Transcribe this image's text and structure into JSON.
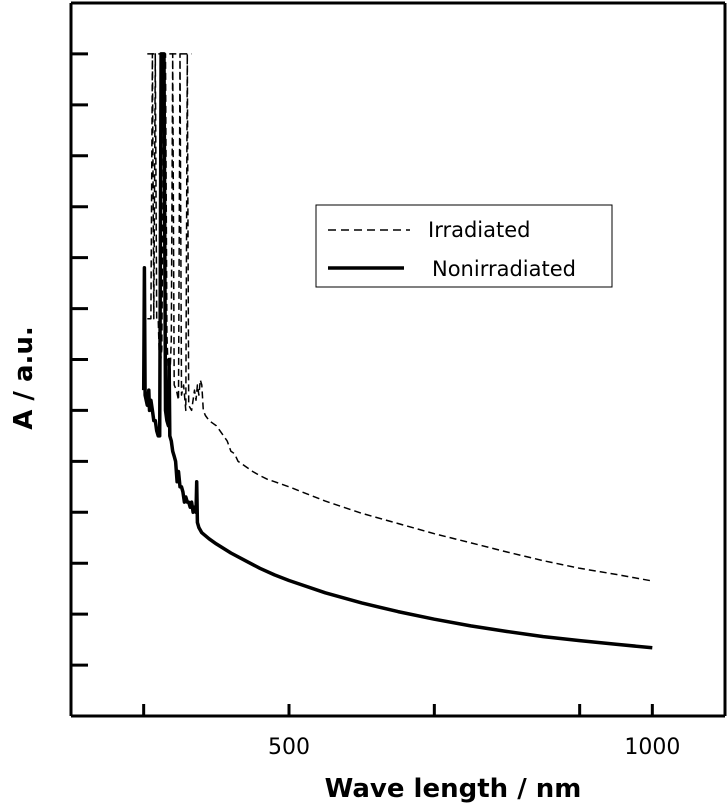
{
  "chart_data": {
    "type": "line",
    "title": "",
    "xlabel": "Wave length / nm",
    "ylabel": "A / a.u.",
    "xlim": [
      200,
      1100
    ],
    "ylim": [
      0,
      14
    ],
    "x_major_ticks": [
      300,
      500,
      700,
      900,
      1000
    ],
    "x_tick_labels": [
      {
        "value": 500,
        "label": "500"
      },
      {
        "value": 1000,
        "label": "1000"
      }
    ],
    "y_ticks": [
      1,
      2,
      3,
      4,
      5,
      6,
      7,
      8,
      9,
      10,
      11,
      12,
      13
    ],
    "y_tick_labels_shown": false,
    "grid": false,
    "legend": {
      "position": "top-right"
    },
    "series": [
      {
        "name": "Irradiated",
        "style": "dashed",
        "color": "#000000",
        "points": [
          [
            305,
            7.8
          ],
          [
            310,
            7.8
          ],
          [
            312,
            13
          ],
          [
            314,
            7.8
          ],
          [
            316,
            13
          ],
          [
            318,
            7.8
          ],
          [
            320,
            7.8
          ],
          [
            322,
            6.8
          ],
          [
            325,
            7.2
          ],
          [
            328,
            13
          ],
          [
            330,
            13
          ],
          [
            332,
            7.5
          ],
          [
            335,
            6.2
          ],
          [
            338,
            7.4
          ],
          [
            340,
            13
          ],
          [
            342,
            6.5
          ],
          [
            345,
            6.4
          ],
          [
            348,
            6.2
          ],
          [
            350,
            13
          ],
          [
            352,
            6.3
          ],
          [
            355,
            6.5
          ],
          [
            358,
            6.0
          ],
          [
            360,
            13
          ],
          [
            362,
            6.1
          ],
          [
            366,
            6.0
          ],
          [
            370,
            6.4
          ],
          [
            372,
            6.2
          ],
          [
            374,
            6.5
          ],
          [
            376,
            6.3
          ],
          [
            378,
            6.6
          ],
          [
            380,
            6.5
          ],
          [
            382,
            6.0
          ],
          [
            385,
            5.9
          ],
          [
            390,
            5.8
          ],
          [
            395,
            5.75
          ],
          [
            400,
            5.7
          ],
          [
            405,
            5.6
          ],
          [
            410,
            5.5
          ],
          [
            415,
            5.4
          ],
          [
            420,
            5.2
          ],
          [
            425,
            5.15
          ],
          [
            430,
            5.0
          ],
          [
            435,
            4.95
          ],
          [
            440,
            4.9
          ],
          [
            450,
            4.8
          ],
          [
            460,
            4.72
          ],
          [
            470,
            4.65
          ],
          [
            480,
            4.6
          ],
          [
            500,
            4.5
          ],
          [
            550,
            4.22
          ],
          [
            600,
            3.98
          ],
          [
            650,
            3.78
          ],
          [
            700,
            3.58
          ],
          [
            750,
            3.4
          ],
          [
            800,
            3.22
          ],
          [
            850,
            3.05
          ],
          [
            900,
            2.9
          ],
          [
            950,
            2.78
          ],
          [
            1000,
            2.65
          ]
        ]
      },
      {
        "name": "Nonirradiated",
        "style": "solid",
        "color": "#000000",
        "points": [
          [
            300,
            6.4
          ],
          [
            301,
            8.8
          ],
          [
            302,
            6.3
          ],
          [
            305,
            6.1
          ],
          [
            307,
            6.4
          ],
          [
            308,
            6.0
          ],
          [
            310,
            6.2
          ],
          [
            312,
            6.0
          ],
          [
            314,
            5.8
          ],
          [
            316,
            5.8
          ],
          [
            318,
            5.6
          ],
          [
            320,
            5.5
          ],
          [
            322,
            5.5
          ],
          [
            324,
            13
          ],
          [
            326,
            13
          ],
          [
            328,
            13
          ],
          [
            330,
            6.0
          ],
          [
            332,
            5.8
          ],
          [
            334,
            5.7
          ],
          [
            335,
            7.0
          ],
          [
            336,
            5.5
          ],
          [
            338,
            5.4
          ],
          [
            340,
            5.2
          ],
          [
            342,
            5.1
          ],
          [
            344,
            5.0
          ],
          [
            346,
            4.6
          ],
          [
            348,
            4.8
          ],
          [
            350,
            4.5
          ],
          [
            352,
            4.5
          ],
          [
            354,
            4.4
          ],
          [
            356,
            4.2
          ],
          [
            358,
            4.3
          ],
          [
            360,
            4.2
          ],
          [
            362,
            4.2
          ],
          [
            364,
            4.1
          ],
          [
            366,
            4.2
          ],
          [
            368,
            4.0
          ],
          [
            370,
            4.1
          ],
          [
            372,
            4.0
          ],
          [
            373,
            4.6
          ],
          [
            374,
            3.8
          ],
          [
            376,
            3.7
          ],
          [
            380,
            3.6
          ],
          [
            390,
            3.48
          ],
          [
            400,
            3.38
          ],
          [
            420,
            3.2
          ],
          [
            440,
            3.05
          ],
          [
            460,
            2.9
          ],
          [
            480,
            2.77
          ],
          [
            500,
            2.66
          ],
          [
            550,
            2.42
          ],
          [
            600,
            2.22
          ],
          [
            650,
            2.05
          ],
          [
            700,
            1.9
          ],
          [
            750,
            1.77
          ],
          [
            800,
            1.66
          ],
          [
            850,
            1.56
          ],
          [
            900,
            1.48
          ],
          [
            950,
            1.41
          ],
          [
            1000,
            1.34
          ]
        ]
      }
    ]
  }
}
